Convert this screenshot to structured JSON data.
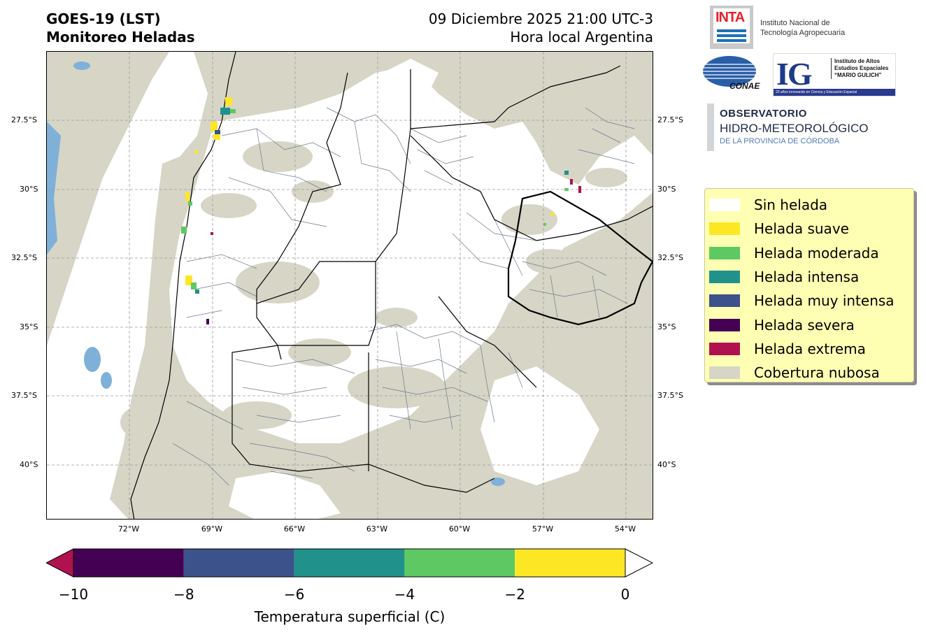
{
  "header": {
    "title_line1": "GOES-19 (LST)",
    "title_line2": "Monitoreo Heladas",
    "datetime": "09 Diciembre 2025 21:00 UTC-3",
    "timezone_note": "Hora local Argentina"
  },
  "map": {
    "lat_ticks": [
      "27.5°S",
      "30°S",
      "32.5°S",
      "35°S",
      "37.5°S",
      "40°S"
    ],
    "lon_ticks": [
      "72°W",
      "69°W",
      "66°W",
      "63°W",
      "60°W",
      "57°W",
      "54°W"
    ],
    "lon_range": [
      -75,
      -53
    ],
    "lat_range": [
      -42,
      -25
    ],
    "colors": {
      "land": "#ffffff",
      "cloud": "#d6d5c6",
      "water": "#7fb0d8",
      "boundary": "#000000",
      "department": "#6a7a8a"
    }
  },
  "legend": {
    "items": [
      {
        "label": "Sin helada",
        "color": "#ffffff"
      },
      {
        "label": "Helada suave",
        "color": "#fde725"
      },
      {
        "label": "Helada moderada",
        "color": "#5ec962"
      },
      {
        "label": "Helada intensa",
        "color": "#21918c"
      },
      {
        "label": "Helada muy intensa",
        "color": "#3b528b"
      },
      {
        "label": "Helada severa",
        "color": "#440154"
      },
      {
        "label": "Helada extrema",
        "color": "#b0124f"
      },
      {
        "label": "Cobertura nubosa",
        "color": "#d6d5c6"
      }
    ]
  },
  "colorbar": {
    "ticks": [
      "−10",
      "−8",
      "−6",
      "−4",
      "−2",
      "0"
    ],
    "tick_values": [
      -10,
      -8,
      -6,
      -4,
      -2,
      0
    ],
    "segments": [
      {
        "from": -10,
        "to": -8,
        "color": "#440154"
      },
      {
        "from": -8,
        "to": -6,
        "color": "#3b528b"
      },
      {
        "from": -6,
        "to": -4,
        "color": "#21918c"
      },
      {
        "from": -4,
        "to": -2,
        "color": "#5ec962"
      },
      {
        "from": -2,
        "to": 0,
        "color": "#fde725"
      }
    ],
    "under_color": "#b0124f",
    "over_color": "#ffffff",
    "label": "Temperatura superficial (C)"
  },
  "logos": {
    "inta_mark": "INTA",
    "inta_line1": "Instituto Nacional de",
    "inta_line2": "Tecnología Agropecuaria",
    "conae": "CONAE",
    "ig_mark": "IG",
    "ig_line1": "Instituto de Altos",
    "ig_line2": "Estudios Espaciales",
    "ig_line3": "“MARIO GULICH”",
    "ig_band": "20 años innovando en Ciencia y Educación Espacial",
    "obs_line1": "OBSERVATORIO",
    "obs_line2": "HIDRO-METEOROLÓGICO",
    "obs_line3": "DE LA PROVINCIA DE CÓRDOBA"
  }
}
